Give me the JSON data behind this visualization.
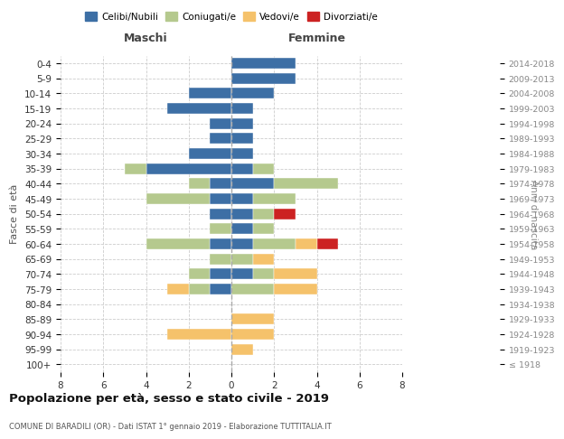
{
  "age_groups": [
    "100+",
    "95-99",
    "90-94",
    "85-89",
    "80-84",
    "75-79",
    "70-74",
    "65-69",
    "60-64",
    "55-59",
    "50-54",
    "45-49",
    "40-44",
    "35-39",
    "30-34",
    "25-29",
    "20-24",
    "15-19",
    "10-14",
    "5-9",
    "0-4"
  ],
  "birth_years": [
    "≤ 1918",
    "1919-1923",
    "1924-1928",
    "1929-1933",
    "1934-1938",
    "1939-1943",
    "1944-1948",
    "1949-1953",
    "1954-1958",
    "1959-1963",
    "1964-1968",
    "1969-1973",
    "1974-1978",
    "1979-1983",
    "1984-1988",
    "1989-1993",
    "1994-1998",
    "1999-2003",
    "2004-2008",
    "2009-2013",
    "2014-2018"
  ],
  "colors": {
    "celibi": "#3d6fa5",
    "coniugati": "#b5c98e",
    "vedovi": "#f5c26b",
    "divorziati": "#cc2222"
  },
  "maschi": {
    "celibi": [
      0,
      0,
      0,
      0,
      0,
      1,
      1,
      0,
      1,
      0,
      1,
      1,
      1,
      4,
      2,
      1,
      1,
      3,
      2,
      0,
      0
    ],
    "coniugati": [
      0,
      0,
      0,
      0,
      0,
      1,
      1,
      1,
      3,
      1,
      0,
      3,
      1,
      1,
      0,
      0,
      0,
      0,
      0,
      0,
      0
    ],
    "vedovi": [
      0,
      0,
      3,
      0,
      0,
      1,
      0,
      0,
      0,
      0,
      0,
      0,
      0,
      0,
      0,
      0,
      0,
      0,
      0,
      0,
      0
    ],
    "divorziati": [
      0,
      0,
      0,
      0,
      0,
      0,
      0,
      0,
      0,
      0,
      0,
      0,
      0,
      0,
      0,
      0,
      0,
      0,
      0,
      0,
      0
    ]
  },
  "femmine": {
    "celibi": [
      0,
      0,
      0,
      0,
      0,
      0,
      1,
      0,
      1,
      1,
      1,
      1,
      2,
      1,
      1,
      1,
      1,
      1,
      2,
      3,
      3
    ],
    "coniugati": [
      0,
      0,
      0,
      0,
      0,
      2,
      1,
      1,
      2,
      1,
      1,
      2,
      3,
      1,
      0,
      0,
      0,
      0,
      0,
      0,
      0
    ],
    "vedovi": [
      0,
      1,
      2,
      2,
      0,
      2,
      2,
      1,
      1,
      0,
      0,
      0,
      0,
      0,
      0,
      0,
      0,
      0,
      0,
      0,
      0
    ],
    "divorziati": [
      0,
      0,
      0,
      0,
      0,
      0,
      0,
      0,
      1,
      0,
      1,
      0,
      0,
      0,
      0,
      0,
      0,
      0,
      0,
      0,
      0
    ]
  },
  "title": "Popolazione per età, sesso e stato civile - 2019",
  "subtitle": "COMUNE DI BARADILI (OR) - Dati ISTAT 1° gennaio 2019 - Elaborazione TUTTITALIA.IT",
  "xlabel_left": "Maschi",
  "xlabel_right": "Femmine",
  "ylabel_left": "Fasce di età",
  "ylabel_right": "Anni di nascita",
  "xlim": 8,
  "legend_labels": [
    "Celibi/Nubili",
    "Coniugati/e",
    "Vedovi/e",
    "Divorziati/e"
  ],
  "bg_color": "#ffffff",
  "grid_color": "#cccccc"
}
